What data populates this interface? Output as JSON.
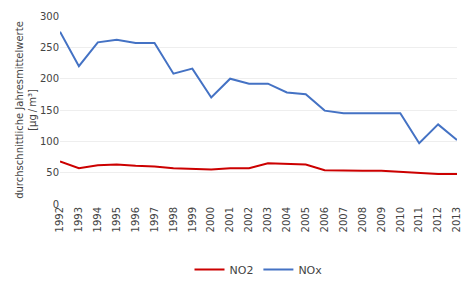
{
  "chart_data": {
    "type": "line",
    "ylabel": "durchschnittliche Jahresmittelwerte\n[μg / m³]",
    "x": [
      1992,
      1993,
      1994,
      1995,
      1996,
      1997,
      1998,
      1999,
      2000,
      2001,
      2002,
      2003,
      2004,
      2005,
      2006,
      2007,
      2008,
      2009,
      2010,
      2011,
      2012,
      2013
    ],
    "series": [
      {
        "name": "NO2",
        "color": "#cc0000",
        "values": [
          68,
          57,
          62,
          63,
          61,
          60,
          57,
          56,
          55,
          57,
          57,
          65,
          64,
          63,
          54,
          53,
          53,
          53,
          51,
          50,
          48,
          48
        ]
      },
      {
        "name": "NOx",
        "color": "#4472c4",
        "values": [
          275,
          220,
          258,
          262,
          257,
          257,
          208,
          216,
          170,
          200,
          192,
          192,
          178,
          175,
          149,
          145,
          145,
          145,
          145,
          97,
          127,
          102
        ]
      }
    ],
    "xlim": [
      1992,
      2013
    ],
    "xticks": [
      1992,
      1993,
      1994,
      1995,
      1996,
      1997,
      1998,
      1999,
      2000,
      2001,
      2002,
      2003,
      2004,
      2005,
      2006,
      2007,
      2008,
      2009,
      2010,
      2011,
      2012,
      2013
    ],
    "ylim": [
      0,
      300
    ],
    "yticks": [
      0,
      50,
      100,
      150,
      200,
      250,
      300
    ],
    "grid": true,
    "legend": "bottom"
  }
}
